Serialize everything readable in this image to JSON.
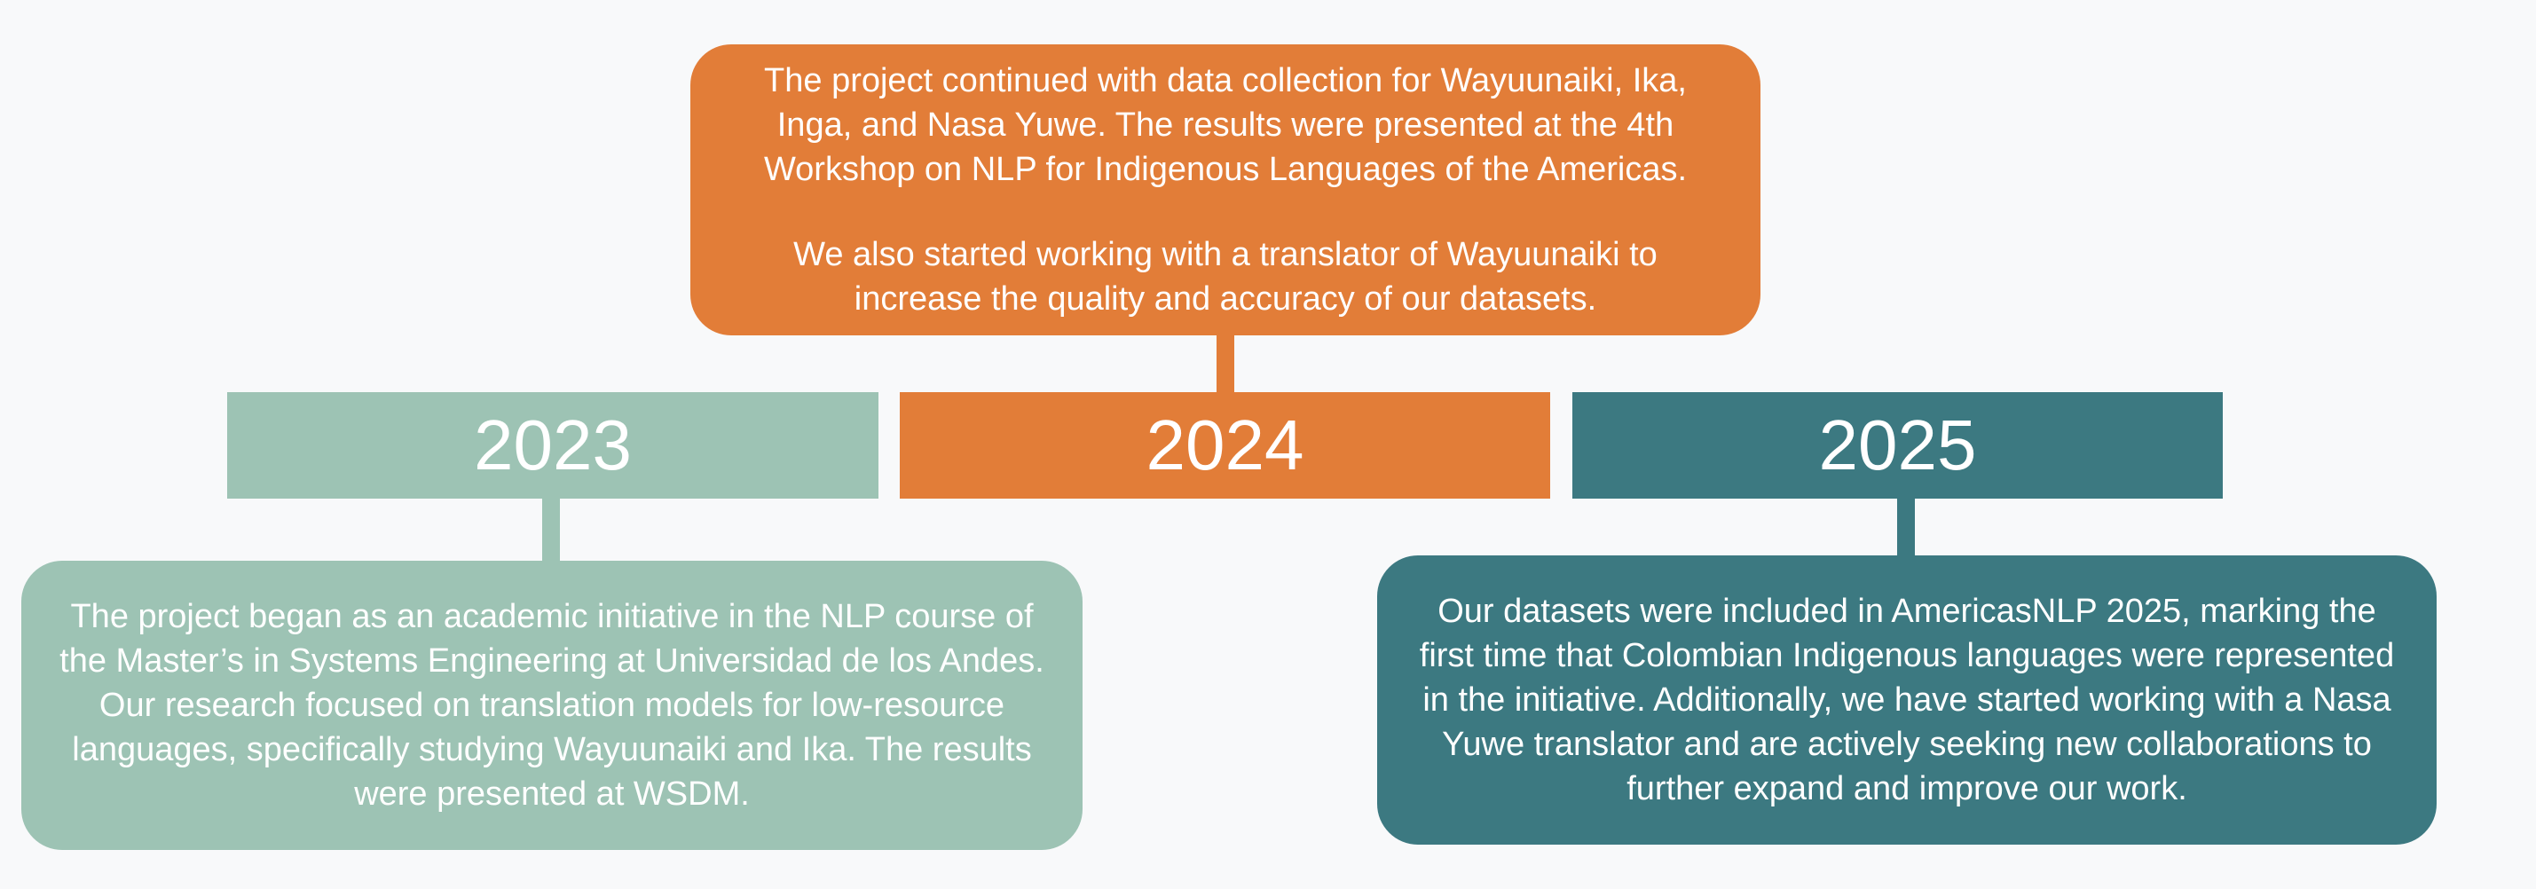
{
  "timeline": [
    {
      "year": "2023",
      "paragraphs": [
        "The project began as an academic initiative in the NLP course of the Master’s in Systems Engineering at Universidad de los Andes. Our research focused on translation models for low-resource languages, specifically studying Wayuunaiki and Ika. The results were presented at WSDM."
      ],
      "color": "#9dc3b4"
    },
    {
      "year": "2024",
      "paragraphs": [
        "The project continued with data collection for Wayuunaiki, Ika, Inga, and Nasa Yuwe. The results were presented at the 4th Workshop on NLP for Indigenous Languages of the Americas.",
        "We also started working with a translator of Wayuunaiki to increase the quality and accuracy of our datasets."
      ],
      "color": "#e27d38"
    },
    {
      "year": "2025",
      "paragraphs": [
        "Our datasets were included in AmericasNLP 2025, marking the first time that Colombian Indigenous languages were represented in the initiative. Additionally, we have started working with a Nasa Yuwe translator and are actively seeking new collaborations to further expand and improve our work."
      ],
      "color": "#3c7981"
    }
  ]
}
